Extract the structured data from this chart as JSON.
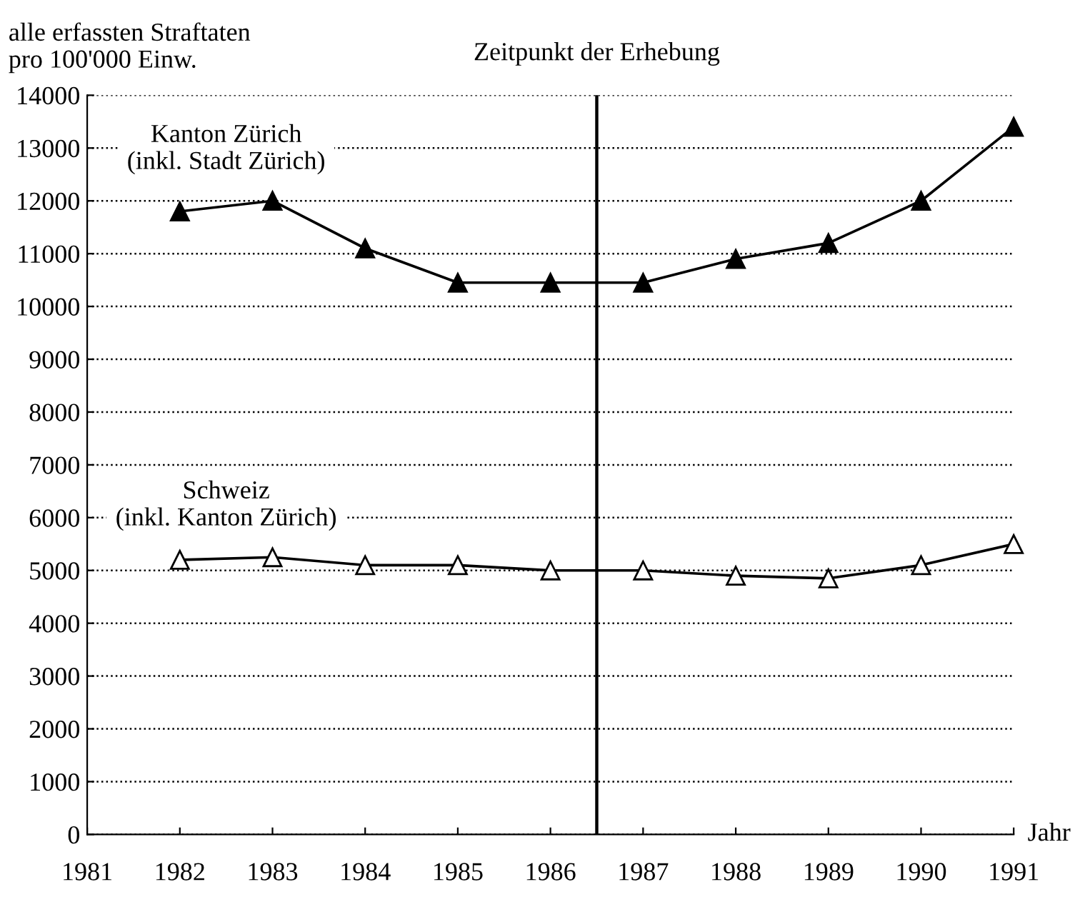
{
  "chart_data": {
    "type": "line",
    "ylabel": "alle erfassten Straftaten\npro 100'000 Einw.",
    "xlabel": "Jahr",
    "x": [
      1982,
      1983,
      1984,
      1985,
      1986,
      1987,
      1988,
      1989,
      1990,
      1991
    ],
    "series": [
      {
        "name": "Kanton Zürich\n(inkl. Stadt Zürich)",
        "color": "#000000",
        "values": [
          11800,
          12000,
          11100,
          10450,
          10450,
          10450,
          10900,
          11200,
          12000,
          13400
        ]
      },
      {
        "name": "Schweiz\n(inkl. Kanton Zürich)",
        "color": "#000000",
        "values": [
          5200,
          5250,
          5100,
          5100,
          5000,
          5000,
          4900,
          4850,
          5100,
          5500
        ]
      }
    ],
    "xlim": [
      1981,
      1991
    ],
    "xticks": [
      1981,
      1982,
      1983,
      1984,
      1985,
      1986,
      1987,
      1988,
      1989,
      1990,
      1991
    ],
    "ylim": [
      0,
      14000
    ],
    "yticks": [
      0,
      1000,
      2000,
      3000,
      4000,
      5000,
      6000,
      7000,
      8000,
      9000,
      10000,
      11000,
      12000,
      13000,
      14000
    ],
    "ref_lines": [
      {
        "axis": "x",
        "value": 1986.5,
        "label": "Zeitpunkt der Erhebung",
        "color": "#000000",
        "line_style": "solid"
      }
    ],
    "grid": "y",
    "marker": "triangle",
    "line_style": "solid",
    "legend": false
  }
}
